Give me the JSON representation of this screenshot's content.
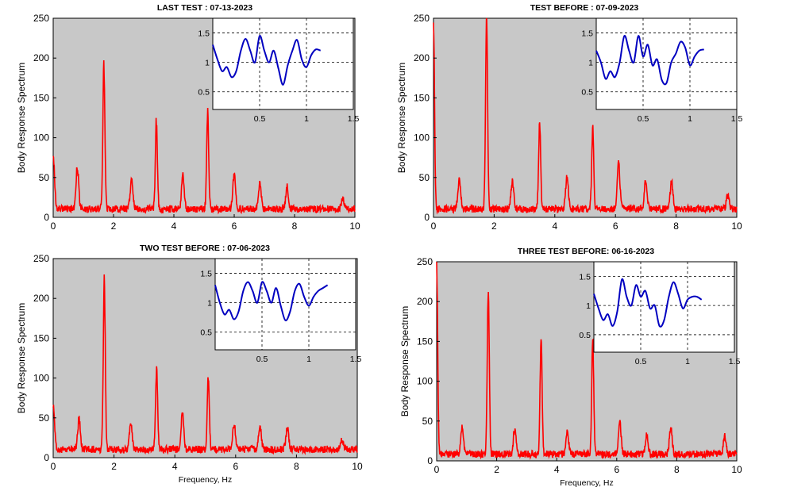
{
  "colors": {
    "plot_bg": "#c8c8c8",
    "inset_bg": "#ffffff",
    "main_line": "#ff0000",
    "inset_line": "#0000c0",
    "axis": "#000000",
    "grid": "#000000"
  },
  "chart_data": [
    {
      "type": "line",
      "title": "LAST TEST : 07-13-2023",
      "xlabel": "",
      "ylabel": "Body Response Spectrum",
      "xlim": [
        0,
        10
      ],
      "ylim": [
        0,
        250
      ],
      "xticks": [
        "0",
        "2",
        "4",
        "6",
        "8",
        "10"
      ],
      "yticks": [
        "0",
        "50",
        "100",
        "150",
        "200",
        "250"
      ],
      "baseline": 8,
      "peaks": [
        [
          0.0,
          70
        ],
        [
          0.8,
          55
        ],
        [
          1.68,
          190
        ],
        [
          2.6,
          40
        ],
        [
          3.42,
          117
        ],
        [
          4.3,
          43
        ],
        [
          5.12,
          127
        ],
        [
          6.0,
          48
        ],
        [
          6.85,
          35
        ],
        [
          7.75,
          28
        ],
        [
          9.6,
          12
        ]
      ],
      "inset": {
        "xlim": [
          0,
          1.5
        ],
        "ylim": [
          0.2,
          1.75
        ],
        "xticks": [
          "0.5",
          "1",
          "1.5"
        ],
        "yticks": [
          "0.5",
          "1",
          "1.5"
        ],
        "x": [
          0.0,
          0.05,
          0.1,
          0.15,
          0.2,
          0.25,
          0.3,
          0.35,
          0.4,
          0.45,
          0.5,
          0.55,
          0.6,
          0.65,
          0.7,
          0.75,
          0.8,
          0.85,
          0.9,
          0.95,
          1.0,
          1.05,
          1.1,
          1.15
        ],
        "y": [
          1.3,
          1.05,
          0.85,
          0.92,
          0.75,
          0.85,
          1.2,
          1.4,
          1.2,
          1.0,
          1.45,
          1.2,
          1.0,
          1.2,
          0.9,
          0.62,
          0.95,
          1.2,
          1.38,
          1.05,
          0.92,
          1.12,
          1.22,
          1.2
        ]
      }
    },
    {
      "type": "line",
      "title": "TEST BEFORE : 07-09-2023",
      "xlabel": "",
      "ylabel": "Body Response Spectrum",
      "xlim": [
        0,
        10
      ],
      "ylim": [
        0,
        250
      ],
      "xticks": [
        "0",
        "2",
        "4",
        "6",
        "8",
        "10"
      ],
      "yticks": [
        "0",
        "50",
        "100",
        "150",
        "200",
        "250"
      ],
      "baseline": 8,
      "peaks": [
        [
          0.0,
          250
        ],
        [
          0.85,
          40
        ],
        [
          1.75,
          250
        ],
        [
          2.6,
          38
        ],
        [
          3.5,
          115
        ],
        [
          4.4,
          42
        ],
        [
          5.25,
          108
        ],
        [
          6.1,
          62
        ],
        [
          7.0,
          38
        ],
        [
          7.85,
          36
        ],
        [
          9.7,
          18
        ]
      ],
      "inset": {
        "xlim": [
          0,
          1.5
        ],
        "ylim": [
          0.2,
          1.75
        ],
        "xticks": [
          "0.5",
          "1",
          "1.5"
        ],
        "yticks": [
          "0.5",
          "1",
          "1.5"
        ],
        "x": [
          0.0,
          0.05,
          0.1,
          0.15,
          0.2,
          0.25,
          0.3,
          0.35,
          0.4,
          0.45,
          0.5,
          0.55,
          0.6,
          0.65,
          0.7,
          0.75,
          0.8,
          0.85,
          0.9,
          0.95,
          1.0,
          1.05,
          1.1,
          1.15
        ],
        "y": [
          1.2,
          1.0,
          0.72,
          0.85,
          0.75,
          1.0,
          1.45,
          1.2,
          1.0,
          1.45,
          1.1,
          1.3,
          0.95,
          1.05,
          0.7,
          0.65,
          1.0,
          1.15,
          1.35,
          1.25,
          0.95,
          1.1,
          1.2,
          1.22
        ]
      }
    },
    {
      "type": "line",
      "title": "TWO TEST BEFORE : 07-06-2023",
      "xlabel": "Frequency, Hz",
      "ylabel": "Body Response Spectrum",
      "xlim": [
        0,
        10
      ],
      "ylim": [
        0,
        250
      ],
      "xticks": [
        "0",
        "2",
        "4",
        "6",
        "8",
        "10"
      ],
      "yticks": [
        "0",
        "50",
        "100",
        "150",
        "200",
        "250"
      ],
      "baseline": 8,
      "peaks": [
        [
          0.0,
          60
        ],
        [
          0.85,
          40
        ],
        [
          1.68,
          220
        ],
        [
          2.55,
          33
        ],
        [
          3.4,
          105
        ],
        [
          4.25,
          45
        ],
        [
          5.1,
          96
        ],
        [
          5.95,
          32
        ],
        [
          6.8,
          30
        ],
        [
          7.7,
          28
        ],
        [
          9.5,
          12
        ]
      ],
      "inset": {
        "xlim": [
          0,
          1.5
        ],
        "ylim": [
          0.2,
          1.75
        ],
        "xticks": [
          "0.5",
          "1",
          "1.5"
        ],
        "yticks": [
          "0.5",
          "1",
          "1.5"
        ],
        "x": [
          0.0,
          0.05,
          0.1,
          0.15,
          0.2,
          0.25,
          0.3,
          0.35,
          0.4,
          0.45,
          0.5,
          0.55,
          0.6,
          0.65,
          0.7,
          0.75,
          0.8,
          0.85,
          0.9,
          0.95,
          1.0,
          1.05,
          1.1,
          1.15,
          1.2
        ],
        "y": [
          1.3,
          1.0,
          0.8,
          0.88,
          0.72,
          0.85,
          1.2,
          1.35,
          1.2,
          1.0,
          1.35,
          1.2,
          1.0,
          1.25,
          0.95,
          0.7,
          0.85,
          1.2,
          1.32,
          1.1,
          0.95,
          1.1,
          1.2,
          1.25,
          1.3
        ]
      }
    },
    {
      "type": "line",
      "title": "THREE TEST BEFORE:   06-16-2023",
      "xlabel": "Frequency, Hz",
      "ylabel": "Body Response Spectrum",
      "xlim": [
        0,
        10
      ],
      "ylim": [
        0,
        250
      ],
      "xticks": [
        "0",
        "2",
        "4",
        "6",
        "8",
        "10"
      ],
      "yticks": [
        "0",
        "50",
        "100",
        "150",
        "200",
        "250"
      ],
      "baseline": 6,
      "peaks": [
        [
          0.0,
          250
        ],
        [
          0.85,
          38
        ],
        [
          1.72,
          222
        ],
        [
          2.6,
          34
        ],
        [
          3.48,
          157
        ],
        [
          4.35,
          30
        ],
        [
          5.2,
          150
        ],
        [
          6.1,
          42
        ],
        [
          7.0,
          25
        ],
        [
          7.8,
          34
        ],
        [
          9.6,
          23
        ]
      ],
      "inset": {
        "xlim": [
          0,
          1.5
        ],
        "ylim": [
          0.2,
          1.75
        ],
        "xticks": [
          "0.5",
          "1",
          "1.5"
        ],
        "yticks": [
          "0.5",
          "1",
          "1.5"
        ],
        "x": [
          0.0,
          0.05,
          0.1,
          0.15,
          0.2,
          0.25,
          0.3,
          0.35,
          0.4,
          0.45,
          0.5,
          0.55,
          0.6,
          0.65,
          0.7,
          0.75,
          0.8,
          0.85,
          0.9,
          0.95,
          1.0,
          1.05,
          1.1,
          1.15
        ],
        "y": [
          1.2,
          0.95,
          0.75,
          0.85,
          0.65,
          0.9,
          1.45,
          1.15,
          1.0,
          1.35,
          1.15,
          1.25,
          0.95,
          1.0,
          0.65,
          0.75,
          1.15,
          1.4,
          1.2,
          0.95,
          1.1,
          1.15,
          1.15,
          1.1
        ]
      }
    }
  ]
}
